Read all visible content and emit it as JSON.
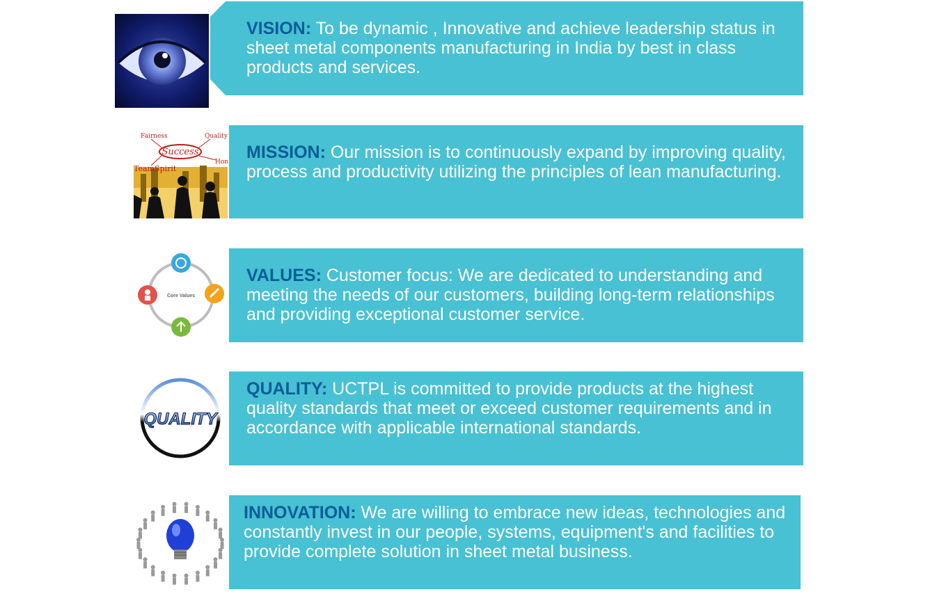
{
  "items": [
    {
      "icon": "eye-icon",
      "heading": "VISION",
      "colon": ":",
      "text": " To be dynamic , Innovative and achieve leadership status in sheet metal components manufacturing in India by best in class products and services."
    },
    {
      "icon": "teamwork-icon",
      "heading": "MISSION",
      "colon": ":",
      "text": " Our mission is to continuously expand by improving quality, process and productivity utilizing the principles of lean manufacturing.",
      "image_text": {
        "fairness": "Fairness",
        "quality": "Quality",
        "success": "Success",
        "teamspirit": "TeamSpirit",
        "honesty": "Hone"
      }
    },
    {
      "icon": "core-values-cycle-icon",
      "heading": "VALUES",
      "colon": ":",
      "text": " Customer focus: We are dedicated to understanding and meeting the needs of our customers, building long-term relationships and providing exceptional customer service.",
      "image_text": {
        "center": "Core Values"
      }
    },
    {
      "icon": "quality-badge-icon",
      "heading": "QUALITY",
      "colon": ":",
      "text": " UCTPL is committed to provide products at the highest quality standards that meet or exceed customer requirements and in accordance with applicable international standards.",
      "image_text": {
        "badge": "QUALITY"
      }
    },
    {
      "icon": "lightbulb-people-icon",
      "heading": "INNOVATION",
      "colon": ":",
      "text": " We are willing to embrace new ideas, technologies and constantly invest in our people, systems, equipment's and facilities to provide complete solution in sheet metal business."
    }
  ],
  "colors": {
    "panel": "#47c1d3",
    "heading": "#0b5d99",
    "body_text": "#ffffff"
  }
}
